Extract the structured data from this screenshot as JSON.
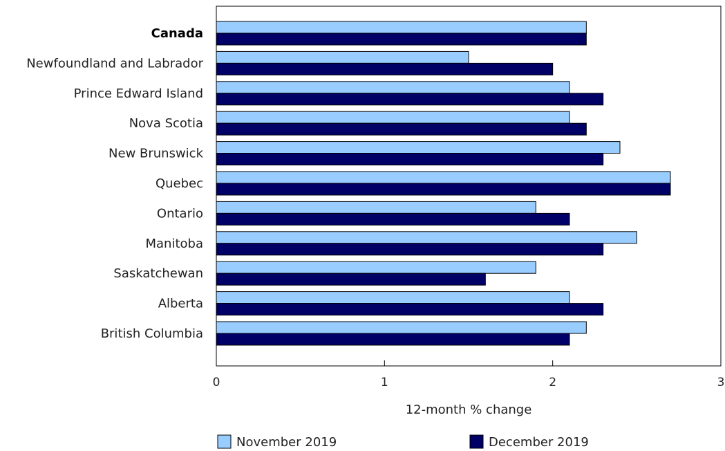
{
  "chart_data": {
    "type": "bar",
    "orientation": "horizontal",
    "categories": [
      "Canada",
      "Newfoundland and Labrador",
      "Prince Edward Island",
      "Nova Scotia",
      "New Brunswick",
      "Quebec",
      "Ontario",
      "Manitoba",
      "Saskatchewan",
      "Alberta",
      "British Columbia"
    ],
    "bold_categories": [
      "Canada"
    ],
    "series": [
      {
        "name": "November 2019",
        "color": "#99ccff",
        "values": [
          2.2,
          1.5,
          2.1,
          2.1,
          2.4,
          2.7,
          1.9,
          2.5,
          1.9,
          2.1,
          2.2
        ]
      },
      {
        "name": "December 2019",
        "color": "#000066",
        "values": [
          2.2,
          2.0,
          2.3,
          2.2,
          2.3,
          2.7,
          2.1,
          2.3,
          1.6,
          2.3,
          2.1
        ]
      }
    ],
    "xlabel": "12-month % change",
    "ylabel": "",
    "xlim": [
      0,
      3
    ],
    "xticks": [
      "0",
      "1",
      "2",
      "3"
    ],
    "grid": false,
    "legend_position": "bottom"
  }
}
